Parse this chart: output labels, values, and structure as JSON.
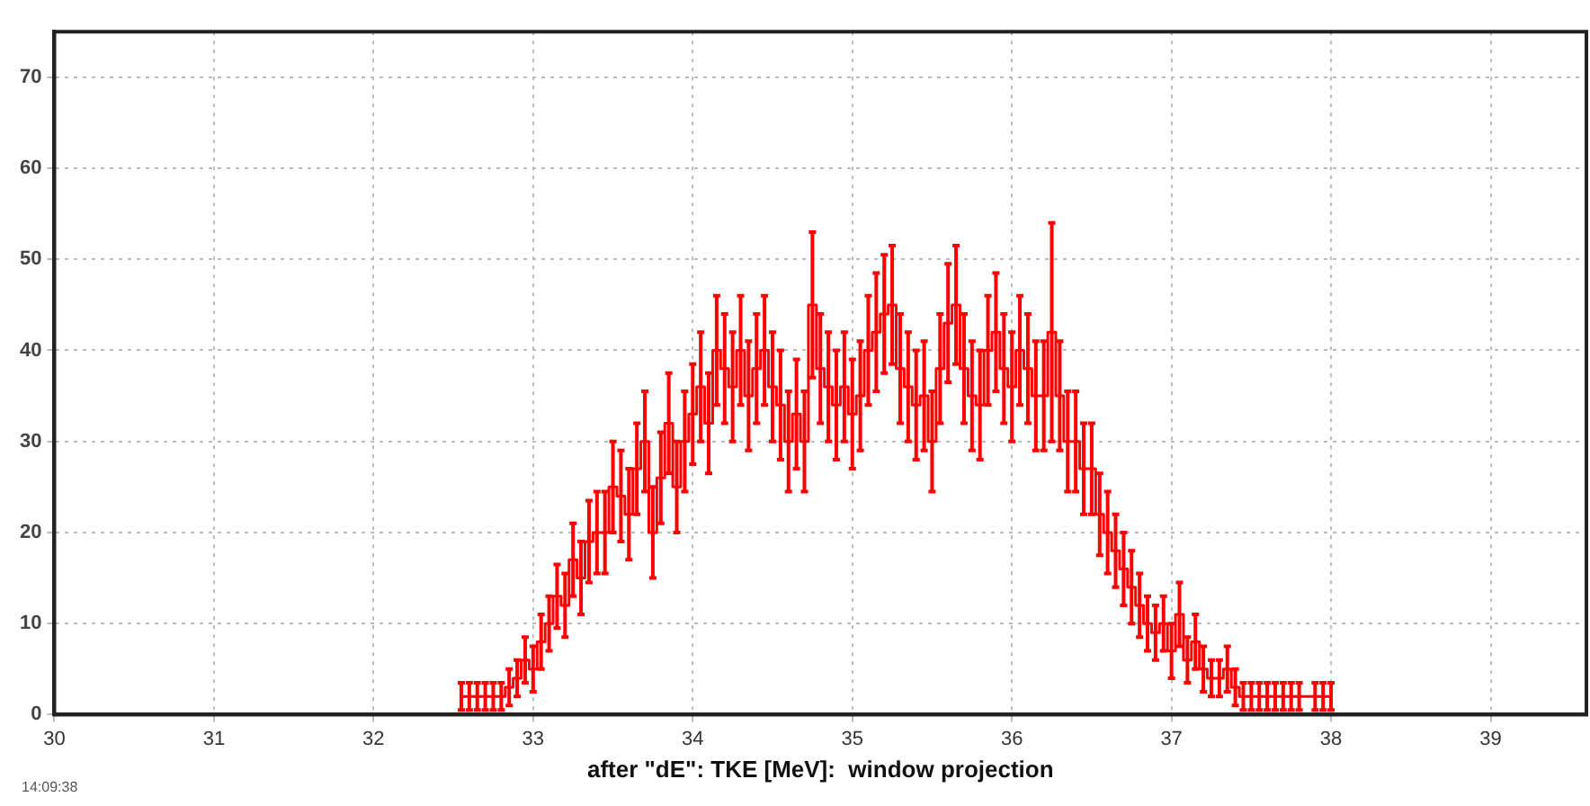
{
  "chart_data": {
    "type": "step",
    "xlabel": "after \"dE\": TKE [MeV]:  window projection",
    "annotations": [
      "14:09:38"
    ],
    "x": [
      32.55,
      32.6,
      32.65,
      32.7,
      32.75,
      32.8,
      32.85,
      32.9,
      32.95,
      33.0,
      33.05,
      33.1,
      33.15,
      33.2,
      33.25,
      33.3,
      33.35,
      33.4,
      33.45,
      33.5,
      33.55,
      33.6,
      33.65,
      33.7,
      33.75,
      33.8,
      33.85,
      33.9,
      33.95,
      34.0,
      34.05,
      34.1,
      34.15,
      34.2,
      34.25,
      34.3,
      34.35,
      34.4,
      34.45,
      34.5,
      34.55,
      34.6,
      34.65,
      34.7,
      34.75,
      34.8,
      34.85,
      34.9,
      34.95,
      35.0,
      35.05,
      35.1,
      35.15,
      35.2,
      35.25,
      35.3,
      35.35,
      35.4,
      35.45,
      35.5,
      35.55,
      35.6,
      35.65,
      35.7,
      35.75,
      35.8,
      35.85,
      35.9,
      35.95,
      36.0,
      36.05,
      36.1,
      36.15,
      36.2,
      36.25,
      36.3,
      36.35,
      36.4,
      36.45,
      36.5,
      36.55,
      36.6,
      36.65,
      36.7,
      36.75,
      36.8,
      36.85,
      36.9,
      36.95,
      37.0,
      37.05,
      37.1,
      37.15,
      37.2,
      37.25,
      37.3,
      37.35,
      37.4,
      37.45,
      37.5,
      37.55,
      37.6,
      37.65,
      37.7,
      37.75,
      37.8,
      37.9,
      37.95,
      38.0
    ],
    "series": [
      {
        "color": "#ff0000",
        "values": [
          2,
          2,
          2,
          2,
          2,
          2,
          3,
          4,
          6,
          5,
          8,
          10,
          13,
          12,
          17,
          15,
          19,
          20,
          20,
          25,
          24,
          22,
          27,
          30,
          20,
          26,
          32,
          25,
          30,
          33,
          36,
          32,
          40,
          38,
          36,
          40,
          35,
          38,
          40,
          36,
          34,
          30,
          33,
          30,
          45,
          38,
          36,
          34,
          36,
          33,
          35,
          40,
          42,
          44,
          45,
          38,
          36,
          34,
          35,
          30,
          38,
          43,
          45,
          38,
          35,
          34,
          40,
          42,
          38,
          36,
          40,
          38,
          35,
          35,
          42,
          35,
          30,
          30,
          27,
          27,
          22,
          20,
          18,
          16,
          14,
          12,
          10,
          9,
          10,
          7,
          11,
          6,
          8,
          5,
          4,
          4,
          5,
          3,
          2,
          2,
          2,
          2,
          2,
          2,
          2,
          2,
          2,
          2,
          2
        ],
        "errors": [
          1.5,
          1.5,
          1.5,
          1.5,
          1.5,
          1.5,
          2,
          2,
          2.5,
          2.5,
          3,
          3,
          3.5,
          3.5,
          4,
          4,
          4.5,
          4.5,
          4.5,
          5,
          5,
          5,
          5,
          5.5,
          5,
          5,
          5.5,
          5,
          5.5,
          5.5,
          6,
          5.5,
          6,
          6,
          6,
          6,
          6,
          6,
          6,
          6,
          6,
          5.5,
          6,
          5.5,
          8,
          6,
          6,
          6,
          6,
          6,
          6,
          6,
          6.5,
          6.5,
          6.5,
          6,
          6,
          6,
          6,
          5.5,
          6,
          6.5,
          6.5,
          6,
          6,
          6,
          6,
          6.5,
          6,
          6,
          6,
          6,
          6,
          6,
          12,
          6,
          5.5,
          5.5,
          5,
          5,
          4.5,
          4.5,
          4,
          4,
          4,
          3.5,
          3,
          3,
          3,
          3,
          3.5,
          2.5,
          3,
          2.5,
          2,
          2,
          2.5,
          2,
          1.5,
          1.5,
          1.5,
          1.5,
          1.5,
          1.5,
          1.5,
          1.5,
          1.5,
          1.5,
          1.5
        ]
      }
    ],
    "xlim": [
      30,
      39.6
    ],
    "xticks": [
      30,
      31,
      32,
      33,
      34,
      35,
      36,
      37,
      38,
      39
    ],
    "ylim": [
      0,
      75
    ],
    "yticks": [
      0,
      10,
      20,
      30,
      40,
      50,
      60,
      70
    ],
    "grid": true
  }
}
